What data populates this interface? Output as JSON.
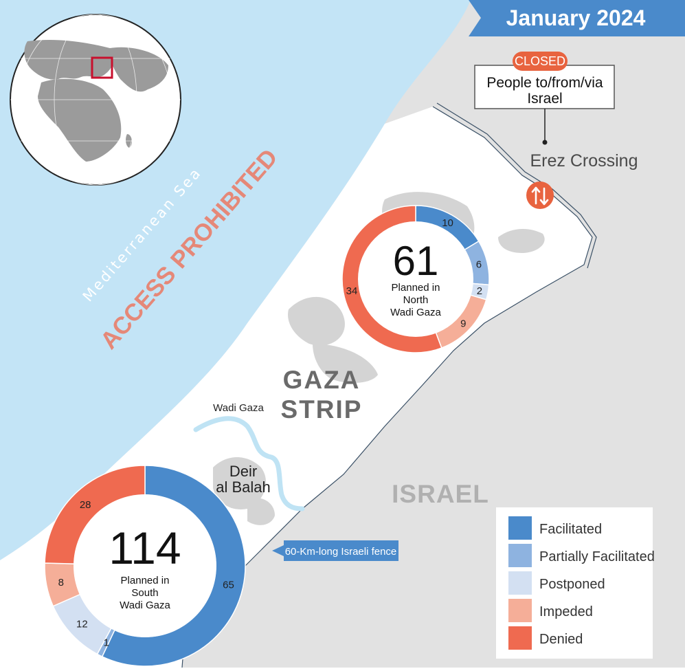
{
  "header": {
    "date": "January 2024",
    "color": "#4A8ACB"
  },
  "crossing": {
    "status": "CLOSED",
    "status_color": "#E8633F",
    "description_line1": "People to/from/via",
    "description_line2": "Israel",
    "name": "Erez Crossing",
    "icon": "two-way-arrows-icon"
  },
  "labels": {
    "sea": "Mediterranean Sea",
    "access_prohibited": "ACCESS PROHIBITED",
    "strip_line1": "GAZA",
    "strip_line2": "STRIP",
    "israel": "ISRAEL",
    "wadi_gaza": "Wadi Gaza",
    "deir_line1": "Deir",
    "deir_line2": "al Balah",
    "fence": "60-Km-long Israeli fence"
  },
  "legend": [
    {
      "label": "Facilitated",
      "color": "#4A8ACB"
    },
    {
      "label": "Partially Facilitated",
      "color": "#8EB3E0"
    },
    {
      "label": "Postponed",
      "color": "#D3E0F2"
    },
    {
      "label": "Impeded",
      "color": "#F5AE98"
    },
    {
      "label": "Denied",
      "color": "#EF6A50"
    }
  ],
  "chart_data": [
    {
      "type": "pie",
      "total": "61",
      "center_line1": "Planned in",
      "center_line2": "North",
      "center_line3": "Wadi Gaza",
      "categories": [
        "Facilitated",
        "Partially Facilitated",
        "Postponed",
        "Impeded",
        "Denied"
      ],
      "values": [
        10,
        6,
        2,
        9,
        34
      ]
    },
    {
      "type": "pie",
      "total": "114",
      "center_line1": "Planned in",
      "center_line2": "South",
      "center_line3": "Wadi Gaza",
      "categories": [
        "Facilitated",
        "Partially Facilitated",
        "Postponed",
        "Impeded",
        "Denied"
      ],
      "values": [
        65,
        1,
        12,
        8,
        28
      ]
    }
  ]
}
